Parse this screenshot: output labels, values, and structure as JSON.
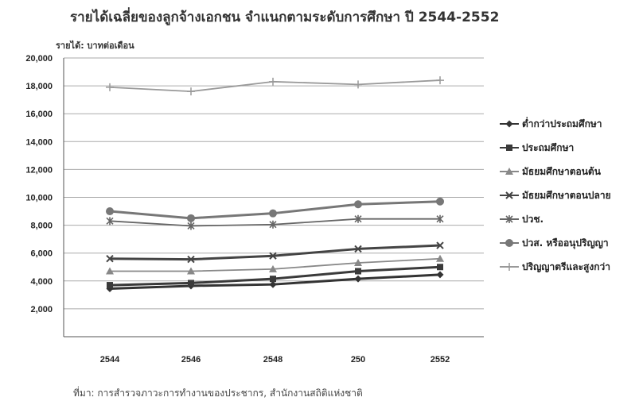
{
  "title": "รายได้เฉลี่ยของลูกจ้างเอกชน จำแนกตามระดับการศึกษา ปี 2544-2552",
  "y_unit_label": "รายได้: บาทต่อเดือน",
  "source": "ที่มา: การสำรวจภาวะการทำงานของประชากร, สำนักงานสถิติแห่งชาติ",
  "chart_data": {
    "type": "line",
    "title": "รายได้เฉลี่ยของลูกจ้างเอกชน จำแนกตามระดับการศึกษา ปี 2544-2552",
    "ylabel": "รายได้: บาทต่อเดือน",
    "xlabel": "",
    "categories": [
      "2544",
      "2546",
      "2548",
      "250",
      "2552"
    ],
    "y_ticks": [
      "20,000",
      "18,000",
      "16,000",
      "14,000",
      "12,000",
      "10,000",
      "8,000",
      "6,000",
      "4,000",
      "2,000"
    ],
    "ylim": [
      0,
      20000
    ],
    "grid": true,
    "legend_position": "right",
    "series": [
      {
        "name": "ต่ำกว่าประถมศึกษา",
        "values": [
          3450,
          3650,
          3750,
          4150,
          4450
        ],
        "color": "#333333",
        "marker": "diamond"
      },
      {
        "name": "ประถมศึกษา",
        "values": [
          3700,
          3850,
          4150,
          4700,
          5000
        ],
        "color": "#3a3a3a",
        "marker": "square"
      },
      {
        "name": "มัธยมศึกษาตอนต้น",
        "values": [
          4700,
          4700,
          4850,
          5300,
          5600
        ],
        "color": "#888888",
        "marker": "triangle"
      },
      {
        "name": "มัธยมศึกษาตอนปลาย",
        "values": [
          5600,
          5550,
          5800,
          6300,
          6550
        ],
        "color": "#444444",
        "marker": "x"
      },
      {
        "name": "ปวช.",
        "values": [
          8300,
          7950,
          8050,
          8450,
          8450
        ],
        "color": "#666666",
        "marker": "star"
      },
      {
        "name": "ปวส. หรืออนุปริญญา",
        "values": [
          9000,
          8500,
          8850,
          9500,
          9700
        ],
        "color": "#777777",
        "marker": "circle"
      },
      {
        "name": "ปริญญาตรีและสูงกว่า",
        "values": [
          17900,
          17600,
          18300,
          18100,
          18400
        ],
        "color": "#999999",
        "marker": "plus"
      }
    ]
  }
}
